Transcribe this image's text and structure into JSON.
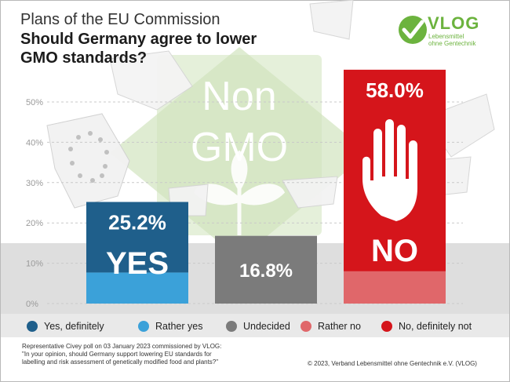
{
  "header": {
    "supertitle": "Plans of the EU Commission",
    "title": "Should Germany agree to lower GMO standards?"
  },
  "logo": {
    "name": "VLOG",
    "tagline_line1": "Lebensmittel",
    "tagline_line2": "ohne Gentechnik",
    "color": "#6cb33e"
  },
  "background_badge": {
    "line1": "Non",
    "line2": "GMO"
  },
  "chart_data": {
    "type": "bar",
    "stacked": true,
    "categories": [
      "YES",
      "Undecided",
      "NO"
    ],
    "category_labels": [
      "YES",
      "",
      "NO"
    ],
    "totals": [
      25.2,
      16.8,
      58.0
    ],
    "total_labels": [
      "25.2%",
      "16.8%",
      "58.0%"
    ],
    "series": [
      {
        "name": "Yes, definitely",
        "color": "#1f5f8b",
        "values": [
          17.5,
          0,
          0
        ]
      },
      {
        "name": "Rather yes",
        "color": "#3ba1d9",
        "values": [
          7.7,
          0,
          0
        ]
      },
      {
        "name": "Undecided",
        "color": "#7b7b7b",
        "values": [
          0,
          16.8,
          0
        ]
      },
      {
        "name": "Rather no",
        "color": "#e0676a",
        "values": [
          0,
          0,
          8.0
        ]
      },
      {
        "name": "No, definitely not",
        "color": "#d5151b",
        "values": [
          0,
          0,
          50.0
        ]
      }
    ],
    "y_ticks": [
      "0%",
      "10%",
      "20%",
      "30%",
      "40%",
      "50%"
    ],
    "ylim": [
      0,
      60
    ],
    "grid": true,
    "legend_position": "bottom"
  },
  "legend": [
    {
      "label": "Yes, definitely",
      "color": "#1f5f8b"
    },
    {
      "label": "Rather yes",
      "color": "#3ba1d9"
    },
    {
      "label": "Undecided",
      "color": "#7b7b7b"
    },
    {
      "label": "Rather no",
      "color": "#e0676a"
    },
    {
      "label": "No, definitely not",
      "color": "#d5151b"
    }
  ],
  "footer": {
    "note_line1": "Representative Civey poll on 03 January 2023 commissioned by VLOG:",
    "note_line2": "\"In your opinion, should Germany support lowering EU standards for",
    "note_line3": "labelling and risk assessment of genetically modified food and plants?\"",
    "copyright": "© 2023, Verband Lebensmittel ohne Gentechnik e.V. (VLOG)"
  }
}
